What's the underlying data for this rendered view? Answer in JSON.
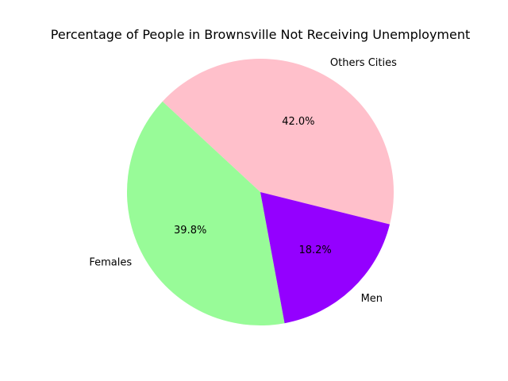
{
  "chart_data": {
    "type": "pie",
    "title": "Percentage of People in Brownsville Not Receiving Unemployment",
    "slices": [
      {
        "label": "Others Cities",
        "value": 42.0,
        "pct_label": "42.0%",
        "color": "#FFC0CB"
      },
      {
        "label": "Females",
        "value": 39.8,
        "pct_label": "39.8%",
        "color": "#98FB98"
      },
      {
        "label": "Men",
        "value": 18.2,
        "pct_label": "18.2%",
        "color": "#9400FF"
      }
    ],
    "start_angle_deg": -14,
    "direction": "counterclockwise",
    "legend": "none"
  }
}
